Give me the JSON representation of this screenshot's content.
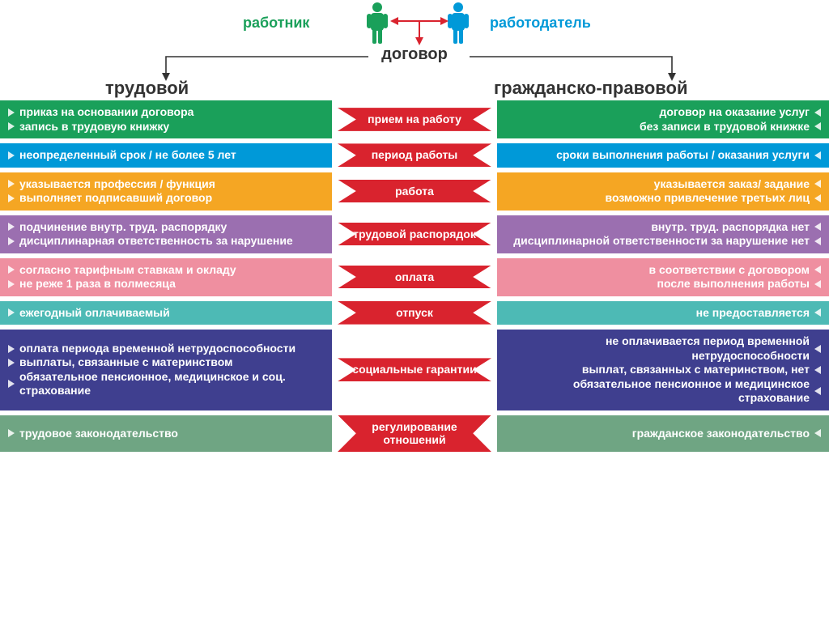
{
  "colors": {
    "green": "#1aa05a",
    "blue": "#0099d8",
    "orange": "#f5a623",
    "purple": "#9b6fb0",
    "pink": "#ef8fa0",
    "teal": "#4dbab5",
    "darkblue": "#3f3f8f",
    "mutedgreen": "#6fa583",
    "red": "#d9232e",
    "text_dark": "#333333"
  },
  "fonts": {
    "header_size": 20,
    "subheader_size": 22,
    "label_size": 18,
    "cell_size": 14,
    "ribbon_size": 14,
    "weight": "bold"
  },
  "header": {
    "worker": "работник",
    "employer": "работодатель",
    "contract": "договор",
    "left_title": "трудовой",
    "right_title": "гражданско-правовой",
    "worker_icon_color": "#1aa05a",
    "employer_icon_color": "#0099d8",
    "arrow_color": "#d9232e",
    "line_color": "#333333"
  },
  "rows": [
    {
      "color": "#1aa05a",
      "center": "прием на работу",
      "left": [
        "приказ на основании договора",
        "запись в трудовую книжку"
      ],
      "right": [
        "договор на оказание услуг",
        "без записи в трудовой книжке"
      ]
    },
    {
      "color": "#0099d8",
      "center": "период работы",
      "left": [
        "неопределенный срок / не более 5 лет"
      ],
      "right": [
        "сроки выполнения работы / оказания услуги"
      ]
    },
    {
      "color": "#f5a623",
      "center": "работа",
      "left": [
        "указывается профессия / функция",
        "выполняет подписавший договор"
      ],
      "right": [
        "указывается заказ/ задание",
        "возможно привлечение третьих лиц"
      ]
    },
    {
      "color": "#9b6fb0",
      "center": "трудовой распорядок",
      "left": [
        "подчинение внутр. труд. распорядку",
        "дисциплинарная ответственность за нарушение"
      ],
      "right": [
        "внутр. труд. распорядка нет",
        "дисциплинарной ответственности за нарушение нет"
      ]
    },
    {
      "color": "#ef8fa0",
      "center": "оплата",
      "left": [
        "согласно тарифным ставкам и окладу",
        "не реже 1 раза в полмесяца"
      ],
      "right": [
        "в соответствии с договором",
        "после выполнения работы"
      ]
    },
    {
      "color": "#4dbab5",
      "center": "отпуск",
      "left": [
        "ежегодный оплачиваемый"
      ],
      "right": [
        "не предоставляется"
      ]
    },
    {
      "color": "#3f3f8f",
      "center": "социальные гарантии",
      "left": [
        "оплата периода временной нетрудоспособности",
        "выплаты, связанные с материнством",
        "обязательное пенсионное, медицинское и соц. страхование"
      ],
      "right": [
        "не оплачивается период временной нетрудоспособности",
        "выплат, связанных с материнством, нет",
        "обязательное пенсионное и медицинское страхование"
      ]
    },
    {
      "color": "#6fa583",
      "center": "регулирование отношений",
      "left": [
        "трудовое законодательство"
      ],
      "right": [
        "гражданское законодательство"
      ]
    }
  ]
}
